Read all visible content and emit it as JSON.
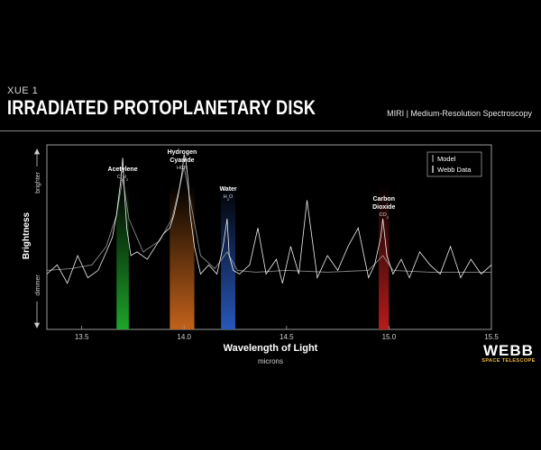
{
  "header": {
    "kicker": "XUE 1",
    "title": "IRRADIATED PROTOPLANETARY DISK",
    "instrument": "MIRI | Medium-Resolution Spectroscopy"
  },
  "logo": {
    "word": "WEBB",
    "subtitle": "SPACE TELESCOPE"
  },
  "chart_data": {
    "type": "line",
    "title": "",
    "xlabel": "Wavelength of Light",
    "xunit": "microns",
    "ylabel": "Brightness",
    "y_high_label": "brighter",
    "y_low_label": "dimmer",
    "xlim": [
      13.33,
      15.5
    ],
    "xticks": [
      "13.5",
      "14.0",
      "14.5",
      "15.0",
      "15.5"
    ],
    "ylim": [
      0,
      1
    ],
    "legend": {
      "placement": "top-right",
      "items": [
        {
          "label": "Model",
          "color": "#aaaaaa"
        },
        {
          "label": "Webb Data",
          "color": "#ffffff"
        }
      ]
    },
    "molecules": [
      {
        "name_lines": [
          "Acetylene"
        ],
        "formula": "C2H2",
        "formula_parts": [
          "C",
          "2",
          "H",
          "2"
        ],
        "x_start": 13.67,
        "x_end": 13.73,
        "color": "#1fa32a"
      },
      {
        "name_lines": [
          "Hydrogen",
          "Cyanide"
        ],
        "formula": "HCN",
        "formula_parts": [
          "HCN"
        ],
        "x_start": 13.93,
        "x_end": 14.05,
        "color": "#c2621a"
      },
      {
        "name_lines": [
          "Water"
        ],
        "formula": "H2O",
        "formula_parts": [
          "H",
          "2",
          "O"
        ],
        "x_start": 14.18,
        "x_end": 14.25,
        "color": "#2757b8"
      },
      {
        "name_lines": [
          "Carbon",
          "Dioxide"
        ],
        "formula": "CO2",
        "formula_parts": [
          "CO",
          "2"
        ],
        "x_start": 14.95,
        "x_end": 15.0,
        "color": "#b51c1c"
      }
    ],
    "series": [
      {
        "name": "Webb Data",
        "color": "#ffffff",
        "x": [
          13.33,
          13.38,
          13.43,
          13.48,
          13.53,
          13.58,
          13.62,
          13.65,
          13.67,
          13.69,
          13.7,
          13.71,
          13.72,
          13.74,
          13.77,
          13.82,
          13.86,
          13.9,
          13.93,
          13.95,
          13.97,
          13.99,
          14.0,
          14.01,
          14.02,
          14.03,
          14.05,
          14.08,
          14.12,
          14.16,
          14.19,
          14.21,
          14.22,
          14.24,
          14.27,
          14.32,
          14.36,
          14.4,
          14.45,
          14.48,
          14.52,
          14.56,
          14.6,
          14.65,
          14.7,
          14.75,
          14.8,
          14.85,
          14.9,
          14.93,
          14.96,
          14.97,
          14.99,
          15.02,
          15.06,
          15.1,
          15.15,
          15.2,
          15.25,
          15.3,
          15.35,
          15.4,
          15.45,
          15.5
        ],
        "y": [
          0.3,
          0.35,
          0.25,
          0.4,
          0.28,
          0.32,
          0.42,
          0.5,
          0.62,
          0.8,
          0.93,
          0.72,
          0.55,
          0.4,
          0.42,
          0.38,
          0.45,
          0.52,
          0.55,
          0.62,
          0.72,
          0.85,
          0.95,
          0.9,
          0.8,
          0.62,
          0.45,
          0.3,
          0.35,
          0.3,
          0.45,
          0.6,
          0.4,
          0.32,
          0.3,
          0.35,
          0.55,
          0.3,
          0.38,
          0.25,
          0.45,
          0.3,
          0.7,
          0.28,
          0.4,
          0.32,
          0.45,
          0.55,
          0.28,
          0.35,
          0.5,
          0.6,
          0.4,
          0.3,
          0.38,
          0.28,
          0.42,
          0.35,
          0.3,
          0.45,
          0.28,
          0.38,
          0.3,
          0.35
        ]
      },
      {
        "name": "Model",
        "color": "#aaaaaa",
        "x": [
          13.33,
          13.45,
          13.55,
          13.62,
          13.67,
          13.7,
          13.73,
          13.8,
          13.88,
          13.94,
          13.98,
          14.0,
          14.03,
          14.08,
          14.15,
          14.21,
          14.26,
          14.35,
          14.5,
          14.7,
          14.9,
          14.97,
          15.02,
          15.2,
          15.5
        ],
        "y": [
          0.32,
          0.33,
          0.35,
          0.45,
          0.62,
          0.82,
          0.6,
          0.42,
          0.48,
          0.6,
          0.78,
          0.88,
          0.7,
          0.4,
          0.33,
          0.42,
          0.32,
          0.31,
          0.32,
          0.31,
          0.32,
          0.4,
          0.32,
          0.31,
          0.31
        ]
      }
    ]
  }
}
